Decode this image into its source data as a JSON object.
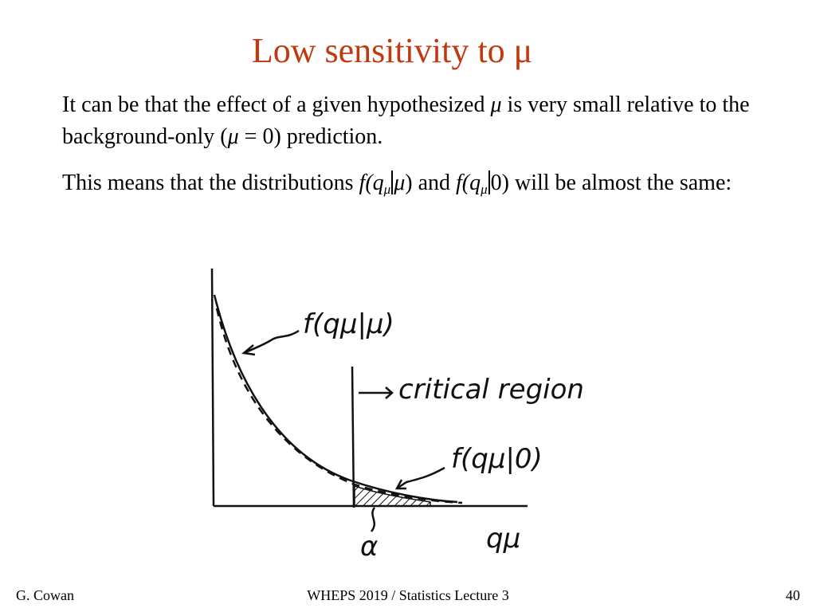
{
  "slide": {
    "title": "Low sensitivity to μ",
    "para1": {
      "a": "It can be that the effect of a given hypothesized ",
      "mu": "μ",
      "b": " is very small relative to the background-only (",
      "mu2": "μ",
      "c": " = 0) prediction."
    },
    "para2": {
      "a": "This means that the distributions ",
      "f1": "f",
      "q1": "(q",
      "s1": "μ",
      "m1": "μ",
      "c1": ") and ",
      "f2": "f",
      "q2": "(q",
      "s2": "μ",
      "z2": "0) will be almost the same:"
    }
  },
  "sketch": {
    "label_f_mu": "f(qμ|μ)",
    "label_critical": "critical region",
    "label_f_0": "f(qμ|0)",
    "label_alpha": "α",
    "label_axis": "qμ"
  },
  "footer": {
    "author": "G. Cowan",
    "lecture": "WHEPS 2019 / Statistics Lecture 3",
    "page": "40"
  }
}
